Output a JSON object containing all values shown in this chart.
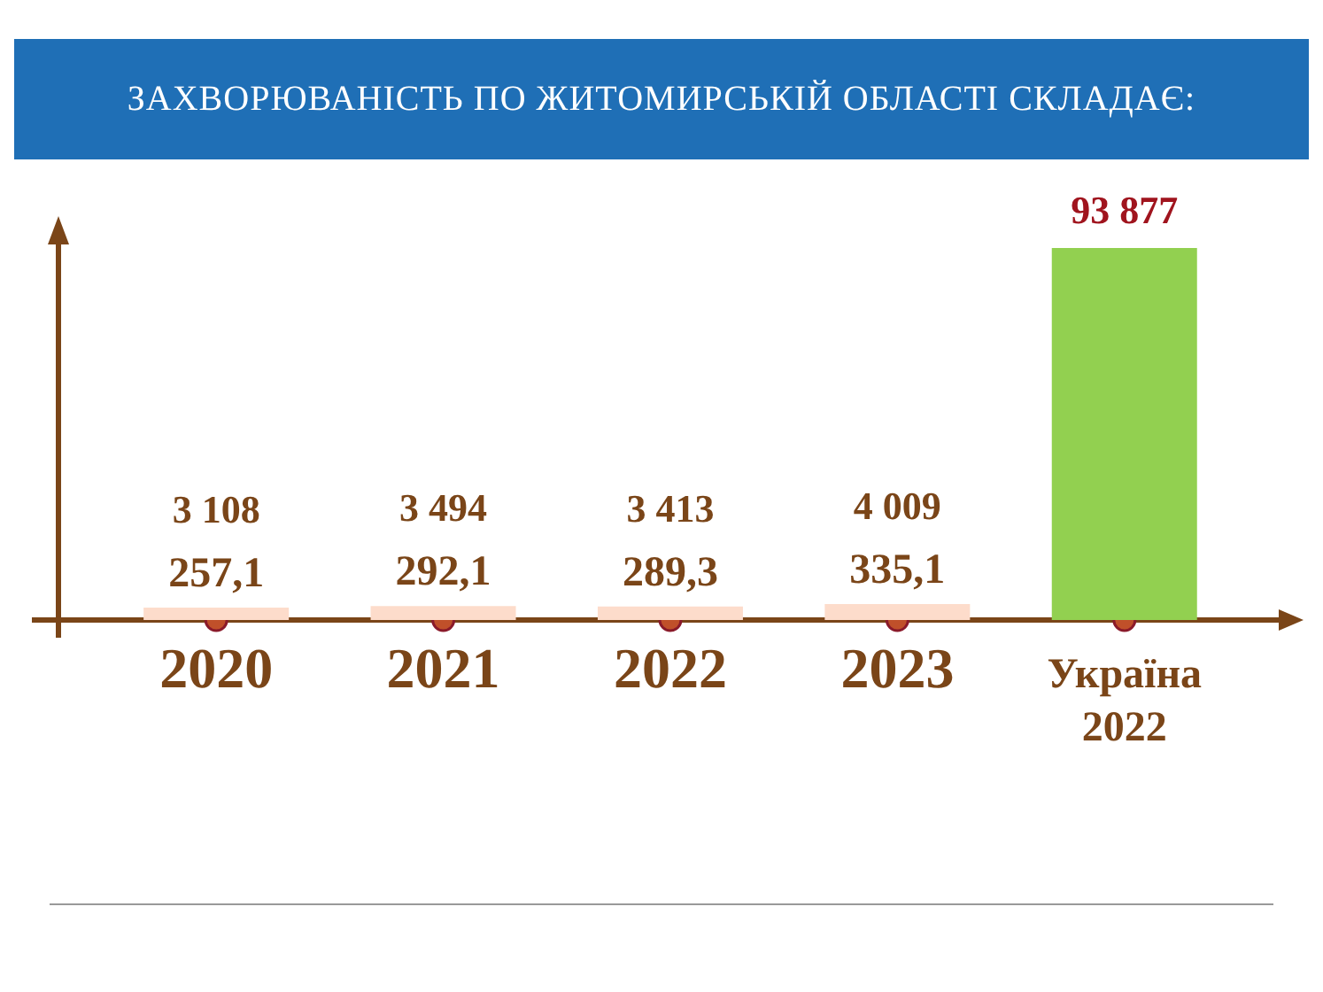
{
  "chart_data": {
    "type": "bar",
    "title": "ЗАХВОРЮВАНІСТЬ ПО ЖИТОМИРСЬКІЙ ОБЛАСТІ СКЛАДАЄ:",
    "categories": [
      "2020",
      "2021",
      "2022",
      "2023",
      "Україна 2022"
    ],
    "values": [
      3108,
      3494,
      3413,
      4009,
      93877
    ],
    "colors": [
      "#fddccb",
      "#fddccb",
      "#fddccb",
      "#fddccb",
      "#92d050"
    ],
    "value_labels": [
      "3 108",
      "3 494",
      "3 413",
      "4 009",
      "93 877"
    ],
    "ylim": [
      0,
      93877
    ],
    "annotations": [
      "257,1",
      "292,1",
      "289,3",
      "335,1"
    ],
    "grid": false,
    "legend": false
  }
}
